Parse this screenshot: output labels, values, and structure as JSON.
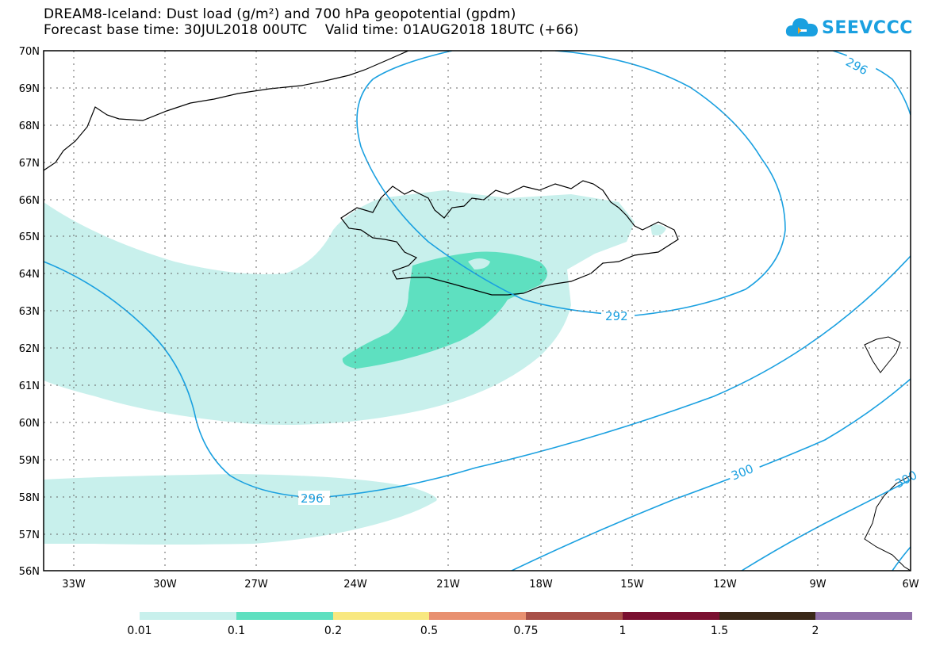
{
  "header": {
    "title_line1": "DREAM8-Iceland: Dust load (g/m²) and 700 hPa geopotential (gpdm)",
    "title_line2": "Forecast base time: 30JUL2018 00UTC    Valid time: 01AUG2018 18UTC (+66)"
  },
  "logo": {
    "text": "SEEVCCC",
    "icon": "cloud-icon",
    "color": "#1aa0e0"
  },
  "map": {
    "lat_labels": [
      "70N",
      "69N",
      "68N",
      "67N",
      "66N",
      "65N",
      "64N",
      "63N",
      "62N",
      "61N",
      "60N",
      "59N",
      "58N",
      "57N",
      "56N"
    ],
    "lon_labels": [
      "33W",
      "30W",
      "27W",
      "24W",
      "21W",
      "18W",
      "15W",
      "12W",
      "9W",
      "6W"
    ],
    "contour_labels": [
      "292",
      "296",
      "296",
      "300",
      "300"
    ]
  },
  "colorbar": {
    "colors": [
      "#c8f0ec",
      "#5ee0c0",
      "#f8e880",
      "#e89070",
      "#a85048",
      "#7a1030",
      "#3a2818",
      "#9070a8"
    ],
    "labels": [
      "0.01",
      "0.1",
      "0.2",
      "0.5",
      "0.75",
      "1",
      "1.5",
      "2"
    ]
  },
  "contour_color": "#1aa0e0"
}
